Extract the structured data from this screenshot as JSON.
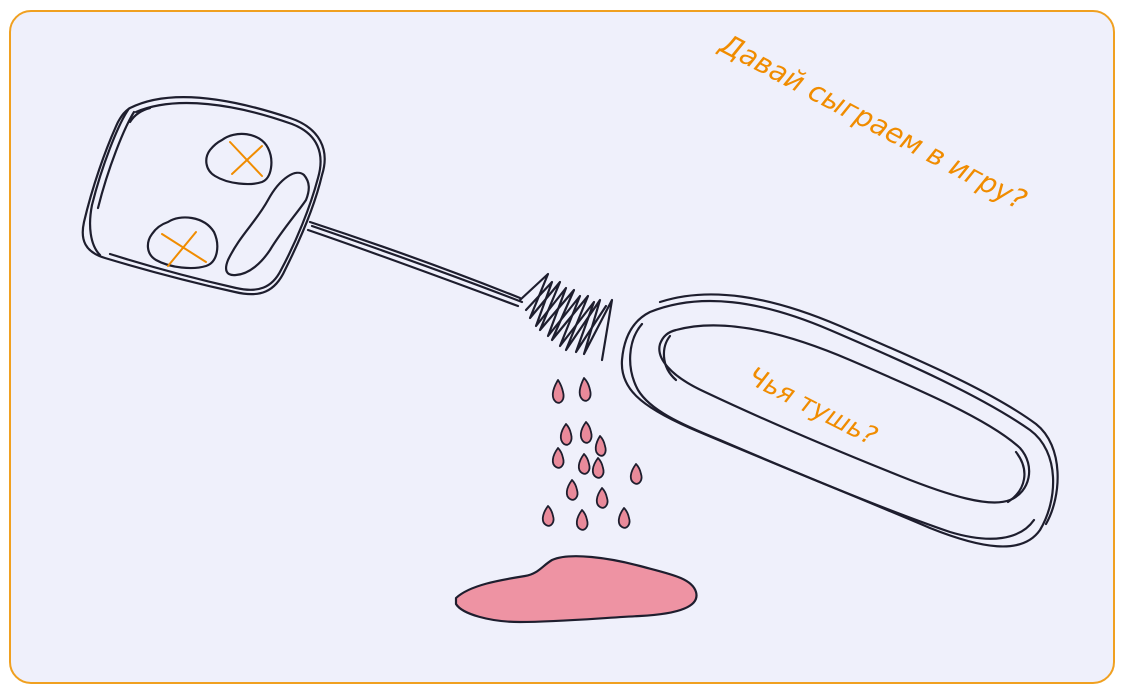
{
  "headline": "Давай сыграем в игру?",
  "label_text": "Чья тушь?",
  "colors": {
    "frame_border": "#f0a020",
    "background": "#eff0fb",
    "ink": "#1e1e2e",
    "accent_orange": "#f08c00",
    "ink_pink": "#e98a9a"
  },
  "illustration": {
    "subject": "mascara wand dripping pink ink",
    "icons": [
      "mascara-brush-icon",
      "mascara-tube-cap-icon",
      "ink-drop-icon",
      "ink-puddle-icon",
      "cross-eye-icon"
    ]
  }
}
